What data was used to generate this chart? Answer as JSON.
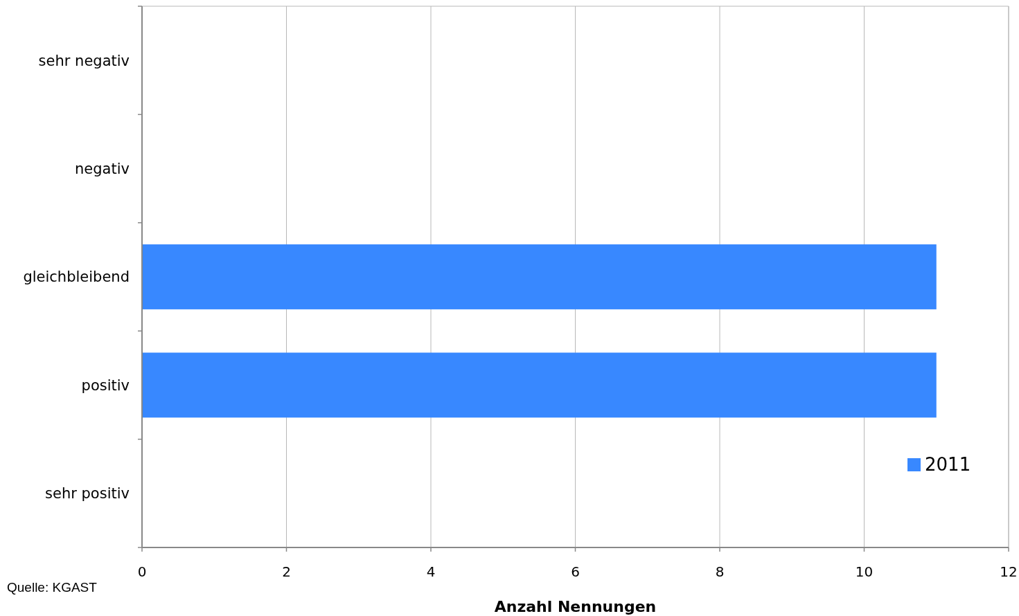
{
  "chart_data": {
    "type": "bar",
    "orientation": "horizontal",
    "categories": [
      "sehr negativ",
      "negativ",
      "gleichbleibend",
      "positiv",
      "sehr positiv"
    ],
    "series": [
      {
        "name": "2011",
        "color": "#3888ff",
        "values": [
          0,
          0,
          11,
          11,
          0
        ]
      }
    ],
    "xlim": [
      0,
      12
    ],
    "xticks": [
      0,
      2,
      4,
      6,
      8,
      10,
      12
    ],
    "xlabel": "Anzahl Nennungen",
    "grid": "x",
    "legend": "bottom right",
    "annotations": [
      "Quelle: KGAST"
    ]
  }
}
